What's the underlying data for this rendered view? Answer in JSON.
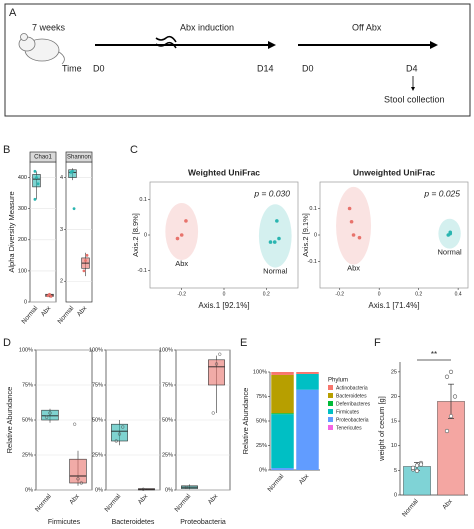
{
  "panel_labels": [
    "A",
    "B",
    "C",
    "D",
    "E",
    "F"
  ],
  "timeline": {
    "age": "7 weeks",
    "time": "Time",
    "phase1": "Abx induction",
    "phase2": "Off Abx",
    "days": [
      "D0",
      "D14",
      "D0",
      "D4"
    ],
    "outcome": "Stool collection"
  },
  "chart_data": [
    {
      "type": "box",
      "title": "Chao1",
      "y_label": "Alpha Diversity Measure",
      "categories": [
        "Normal",
        "Abx"
      ],
      "ylim": [
        0,
        450
      ],
      "yticks": [
        0,
        100,
        200,
        300,
        400
      ],
      "grid": true,
      "boxes": [
        {
          "min": 330,
          "q1": 370,
          "median": 395,
          "q3": 410,
          "max": 420,
          "points": [
            420,
            400,
            380,
            330
          ],
          "color": "#2ab5b0"
        },
        {
          "min": 15,
          "q1": 18,
          "median": 22,
          "q3": 25,
          "max": 28,
          "points": [
            20,
            25,
            18
          ],
          "color": "#e8736c"
        }
      ]
    },
    {
      "type": "box",
      "title": "Shannon",
      "categories": [
        "Normal",
        "Abx"
      ],
      "ylim": [
        1.6,
        4.3
      ],
      "yticks": [
        2,
        3,
        4
      ],
      "grid": true,
      "boxes": [
        {
          "min": 3.95,
          "q1": 4.0,
          "median": 4.1,
          "q3": 4.15,
          "max": 4.18,
          "points": [
            4.1,
            4.12,
            3.4
          ],
          "color": "#2ab5b0"
        },
        {
          "min": 2.1,
          "q1": 2.25,
          "median": 2.35,
          "q3": 2.45,
          "max": 2.55,
          "points": [
            2.2,
            2.4,
            2.5
          ],
          "color": "#e8736c"
        }
      ]
    },
    {
      "type": "scatter",
      "title": "Weighted UniFrac",
      "annotation": "p = 0.030",
      "x_label": "Axis.1 [92.1%]",
      "y_label": "Axis.2 [8.9%]",
      "xlim": [
        -0.35,
        0.35
      ],
      "xticks": [
        -0.2,
        0,
        0.2
      ],
      "ylim": [
        -0.15,
        0.15
      ],
      "yticks": [
        -0.1,
        0,
        0.1
      ],
      "series": [
        {
          "name": "Abx",
          "color": "#e8736c",
          "x": [
            -0.18,
            -0.2,
            -0.22
          ],
          "values": [
            0.04,
            0.0,
            -0.01
          ]
        },
        {
          "name": "Normal",
          "color": "#2ab5b0",
          "x": [
            0.25,
            0.26,
            0.24,
            0.22
          ],
          "values": [
            0.04,
            -0.01,
            -0.02,
            -0.02
          ]
        }
      ]
    },
    {
      "type": "scatter",
      "title": "Unweighted UniFrac",
      "annotation": "p = 0.025",
      "x_label": "Axis.1 [71.4%]",
      "y_label": "Axis.2 [9.1%]",
      "xlim": [
        -0.3,
        0.45
      ],
      "xticks": [
        -0.2,
        0,
        0.2,
        0.4
      ],
      "ylim": [
        -0.2,
        0.2
      ],
      "yticks": [
        -0.1,
        0,
        0.1
      ],
      "series": [
        {
          "name": "Abx",
          "color": "#e8736c",
          "x": [
            -0.15,
            -0.14,
            -0.13,
            -0.1
          ],
          "values": [
            0.1,
            0.05,
            0.0,
            -0.01
          ]
        },
        {
          "name": "Normal",
          "color": "#2ab5b0",
          "x": [
            0.35,
            0.36,
            0.36
          ],
          "values": [
            0.0,
            0.005,
            0.01
          ]
        }
      ]
    },
    {
      "type": "box",
      "title": "Firmicutes",
      "y_label": "Relative Abundance",
      "categories": [
        "Normal",
        "Abx"
      ],
      "ylim": [
        0,
        100
      ],
      "grid": true,
      "yticks": [
        {
          "value": 0,
          "label": "0%"
        },
        {
          "value": 25,
          "label": "25%"
        },
        {
          "value": 50,
          "label": "50%"
        },
        {
          "value": 75,
          "label": "75%"
        },
        {
          "value": 100,
          "label": "100%"
        }
      ],
      "boxes": [
        {
          "min": 48,
          "q1": 50,
          "median": 53,
          "q3": 57,
          "max": 58,
          "points": [
            52,
            55
          ],
          "color": "#2ab5b0"
        },
        {
          "min": 3,
          "q1": 5,
          "median": 10,
          "q3": 22,
          "max": 28,
          "points": [
            47,
            8,
            5
          ],
          "color": "#e8736c"
        }
      ]
    },
    {
      "type": "box",
      "title": "Bacteroidetes",
      "categories": [
        "Normal",
        "Abx"
      ],
      "ylim": [
        0,
        100
      ],
      "grid": true,
      "yticks": [
        {
          "value": 0,
          "label": "0%"
        },
        {
          "value": 25,
          "label": "25%"
        },
        {
          "value": 50,
          "label": "50%"
        },
        {
          "value": 75,
          "label": "75%"
        },
        {
          "value": 100,
          "label": "100%"
        }
      ],
      "boxes": [
        {
          "min": 32,
          "q1": 35,
          "median": 42,
          "q3": 47,
          "max": 50,
          "points": [
            35,
            40,
            45
          ],
          "color": "#2ab5b0"
        },
        {
          "min": 0,
          "q1": 0,
          "median": 0.5,
          "q3": 1,
          "max": 1,
          "points": [
            0.5
          ],
          "color": "#e8736c"
        }
      ]
    },
    {
      "type": "box",
      "title": "Proteobacteria",
      "categories": [
        "Normal",
        "Abx"
      ],
      "ylim": [
        0,
        100
      ],
      "grid": true,
      "yticks": [
        {
          "value": 0,
          "label": "0%"
        },
        {
          "value": 25,
          "label": "25%"
        },
        {
          "value": 50,
          "label": "50%"
        },
        {
          "value": 75,
          "label": "75%"
        },
        {
          "value": 100,
          "label": "100%"
        }
      ],
      "boxes": [
        {
          "min": 0.5,
          "q1": 1,
          "median": 2,
          "q3": 3,
          "max": 4,
          "points": [
            2
          ],
          "color": "#2ab5b0"
        },
        {
          "min": 55,
          "q1": 75,
          "median": 88,
          "q3": 93,
          "max": 96,
          "points": [
            55,
            90,
            97
          ],
          "color": "#e8736c"
        }
      ]
    },
    {
      "type": "stacked_bar",
      "y_label": "Relative Abundance",
      "legend_title": "Phylum",
      "categories": [
        "Normal",
        "Abx"
      ],
      "ylim": [
        0,
        100
      ],
      "yticks": [
        {
          "value": 0,
          "label": "0%"
        },
        {
          "value": 25,
          "label": "25%"
        },
        {
          "value": 50,
          "label": "50%"
        },
        {
          "value": 75,
          "label": "75%"
        },
        {
          "value": 100,
          "label": "100%"
        }
      ],
      "series": [
        {
          "name": "Actinobacteria",
          "color": "#f8766d",
          "values": [
            3,
            2
          ]
        },
        {
          "name": "Bacteroidetes",
          "color": "#b79f00",
          "values": [
            39,
            0
          ]
        },
        {
          "name": "Deferribacteres",
          "color": "#00ba38",
          "values": [
            1,
            0
          ]
        },
        {
          "name": "Firmicutes",
          "color": "#00bfc4",
          "values": [
            55,
            16
          ]
        },
        {
          "name": "Proteobacteria",
          "color": "#619cff",
          "values": [
            2,
            82
          ]
        },
        {
          "name": "Tenericutes",
          "color": "#f564e3",
          "values": [
            0,
            0
          ]
        }
      ]
    },
    {
      "type": "bar",
      "y_label": "weight of cecum [g]",
      "annotation": "**",
      "categories": [
        "Normal",
        "Abx"
      ],
      "ylim": [
        0,
        27
      ],
      "yticks": [
        0,
        5,
        10,
        15,
        20,
        25
      ],
      "values": [
        5.8,
        19
      ],
      "errors": [
        0.8,
        3.5
      ],
      "colors": [
        "#7fd3d6",
        "#f4a6a2"
      ],
      "points": [
        [
          5.2,
          6.0,
          6.5,
          5.5,
          4.9,
          6.2
        ],
        [
          13,
          16,
          20,
          24,
          25
        ]
      ]
    }
  ]
}
